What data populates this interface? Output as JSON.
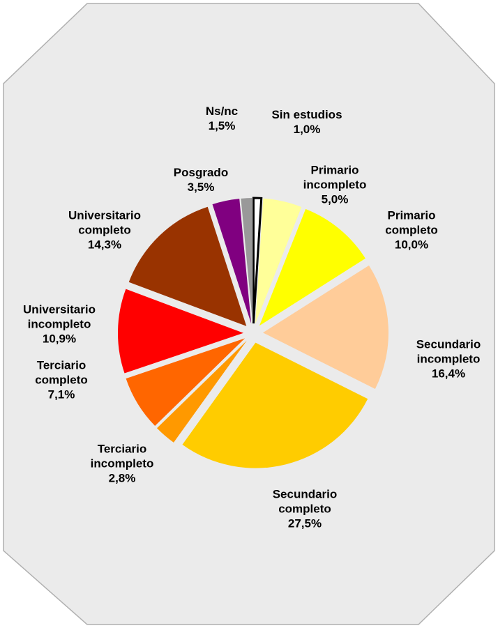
{
  "chart_data": {
    "type": "pie",
    "categories": [
      "Sin estudios",
      "Primario incompleto",
      "Primario completo",
      "Secundario incompleto",
      "Secundario completo",
      "Terciario incompleto",
      "Terciario completo",
      "Universitario incompleto",
      "Universitario completo",
      "Posgrado",
      "Ns/nc"
    ],
    "values": [
      1.0,
      5.0,
      10.0,
      16.4,
      27.5,
      2.8,
      7.1,
      10.9,
      14.3,
      3.5,
      1.5
    ],
    "value_labels": [
      "1,0%",
      "5,0%",
      "10,0%",
      "16,4%",
      "27,5%",
      "2,8%",
      "7,1%",
      "10,9%",
      "14,3%",
      "3,5%",
      "1,5%"
    ],
    "colors": [
      "#FFFFFF",
      "#FFFF99",
      "#FFFF00",
      "#FFCC99",
      "#FFCC00",
      "#FF9900",
      "#FF6600",
      "#FF0000",
      "#993300",
      "#800080",
      "#999999"
    ]
  }
}
